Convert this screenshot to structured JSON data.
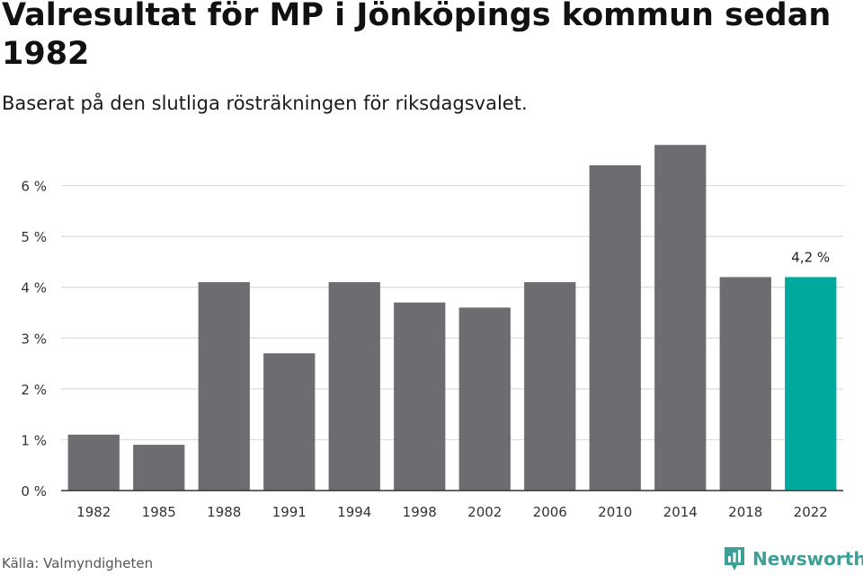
{
  "title": "Valresultat för MP i Jönköpings kommun sedan 1982",
  "subtitle": "Baserat på den slutliga rösträkningen för riksdagsvalet.",
  "source": "Källa: Valmyndigheten",
  "brand": {
    "name": "Newsworthy",
    "icon": "bar-chart-logo-icon",
    "color": "#3d9f96"
  },
  "colors": {
    "bar": "#6d6c71",
    "highlight": "#00a99d",
    "grid": "#dcdcdc",
    "axis": "#333333"
  },
  "chart_data": {
    "type": "bar",
    "title": "Valresultat för MP i Jönköpings kommun sedan 1982",
    "xlabel": "",
    "ylabel": "",
    "categories": [
      "1982",
      "1985",
      "1988",
      "1991",
      "1994",
      "1998",
      "2002",
      "2006",
      "2010",
      "2014",
      "2018",
      "2022"
    ],
    "values": [
      1.1,
      0.9,
      4.1,
      2.7,
      4.1,
      3.7,
      3.6,
      4.1,
      6.4,
      6.8,
      4.2,
      4.2
    ],
    "ylim": [
      0,
      7
    ],
    "yticks": [
      0,
      1,
      2,
      3,
      4,
      5,
      6
    ],
    "ytick_labels": [
      "0 %",
      "1 %",
      "2 %",
      "3 %",
      "4 %",
      "5 %",
      "6 %"
    ],
    "highlight_index": 11,
    "annotation": "4,2 %",
    "grid": true
  }
}
